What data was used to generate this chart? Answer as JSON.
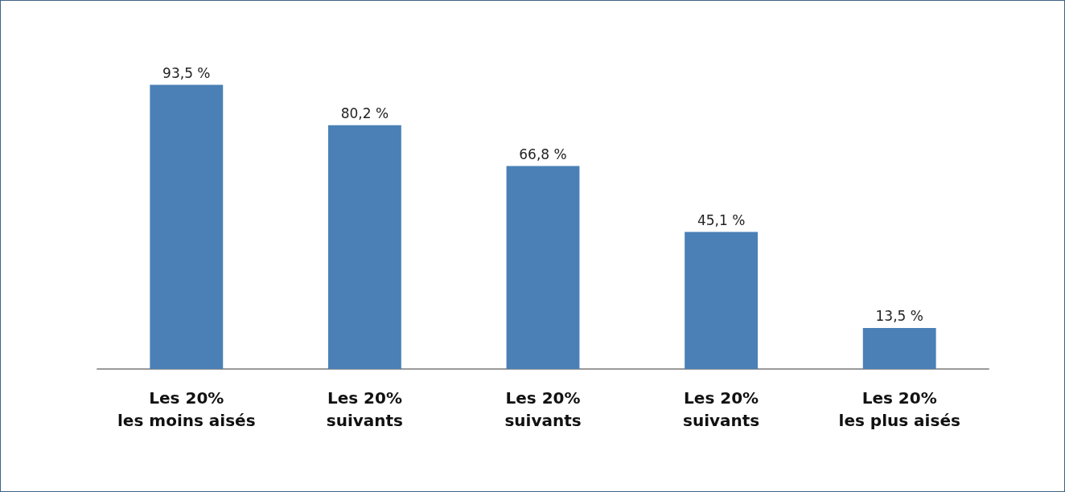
{
  "chart_data": {
    "type": "bar",
    "categories": [
      "Les 20%\nles moins aisés",
      "Les 20%\nsuivants",
      "Les 20%\nsuivants",
      "Les 20%\nsuivants",
      "Les 20%\nles plus aisés"
    ],
    "values": [
      93.5,
      80.2,
      66.8,
      45.1,
      13.5
    ],
    "value_labels": [
      "93,5 %",
      "80,2 %",
      "66,8 %",
      "45,1 %",
      "13,5 %"
    ],
    "color": "#4a80b6",
    "tick_labels": "x"
  }
}
